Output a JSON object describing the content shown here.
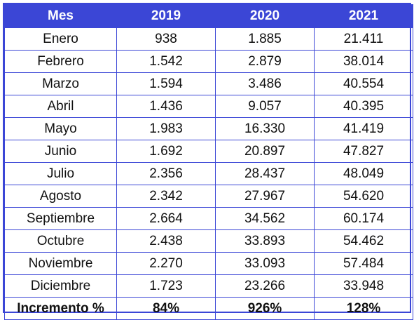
{
  "table": {
    "headers": [
      "Mes",
      "2019",
      "2020",
      "2021"
    ],
    "rows": [
      [
        "Enero",
        "938",
        "1.885",
        "21.411"
      ],
      [
        "Febrero",
        "1.542",
        "2.879",
        "38.014"
      ],
      [
        "Marzo",
        "1.594",
        "3.486",
        "40.554"
      ],
      [
        "Abril",
        "1.436",
        "9.057",
        "40.395"
      ],
      [
        "Mayo",
        "1.983",
        "16.330",
        "41.419"
      ],
      [
        "Junio",
        "1.692",
        "20.897",
        "47.827"
      ],
      [
        "Julio",
        "2.356",
        "28.437",
        "48.049"
      ],
      [
        "Agosto",
        "2.342",
        "27.967",
        "54.620"
      ],
      [
        "Septiembre",
        "2.664",
        "34.562",
        "60.174"
      ],
      [
        "Octubre",
        "2.438",
        "33.893",
        "54.462"
      ],
      [
        "Noviembre",
        "2.270",
        "33.093",
        "57.484"
      ],
      [
        "Diciembre",
        "1.723",
        "23.266",
        "33.948"
      ]
    ],
    "footer": [
      "Incremento %",
      "84%",
      "926%",
      "128%"
    ]
  },
  "colors": {
    "header_background": "#3b46d6",
    "header_text": "#ffffff",
    "border": "#3b46d6"
  }
}
